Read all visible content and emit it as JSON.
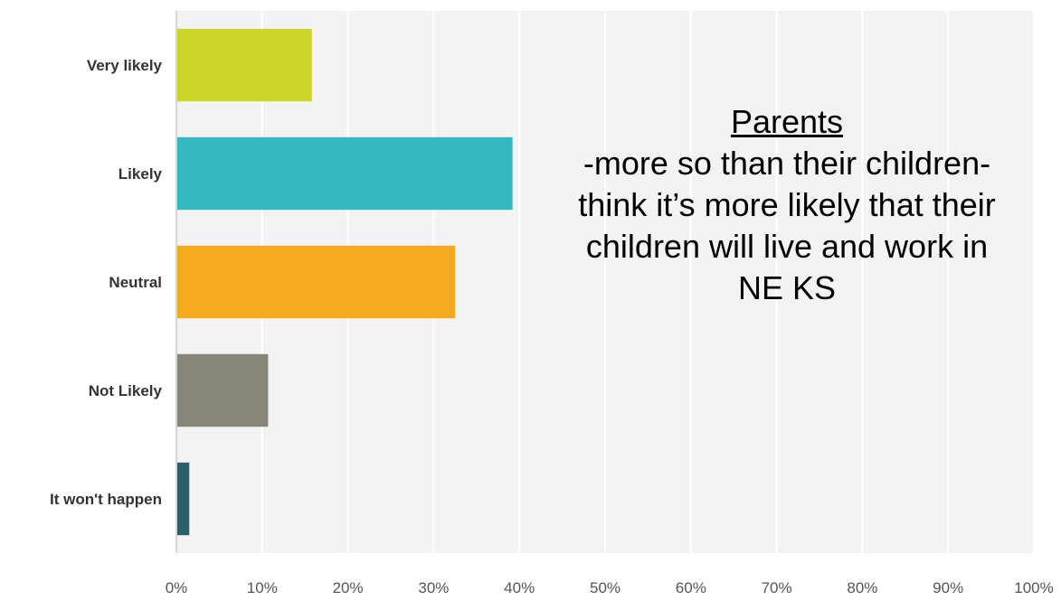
{
  "chart_data": {
    "type": "bar",
    "orientation": "horizontal",
    "categories": [
      "Very likely",
      "Likely",
      "Neutral",
      "Not Likely",
      "It won't happen"
    ],
    "values": [
      15.8,
      39.2,
      32.5,
      10.7,
      1.5
    ],
    "colors": [
      "#ccd52a",
      "#34b9c0",
      "#f5a91e",
      "#868779",
      "#2b5f6a"
    ],
    "xlim": [
      0,
      100
    ],
    "x_ticks": [
      0,
      10,
      20,
      30,
      40,
      50,
      60,
      70,
      80,
      90,
      100
    ],
    "x_tick_labels": [
      "0%",
      "10%",
      "20%",
      "30%",
      "40%",
      "50%",
      "60%",
      "70%",
      "80%",
      "90%",
      "100%"
    ],
    "grid": true,
    "title": "",
    "xlabel": "",
    "ylabel": "",
    "annotation": {
      "title": "Parents",
      "body": "-more so than their children- think it’s more likely that their children will live and work in NE KS"
    }
  }
}
